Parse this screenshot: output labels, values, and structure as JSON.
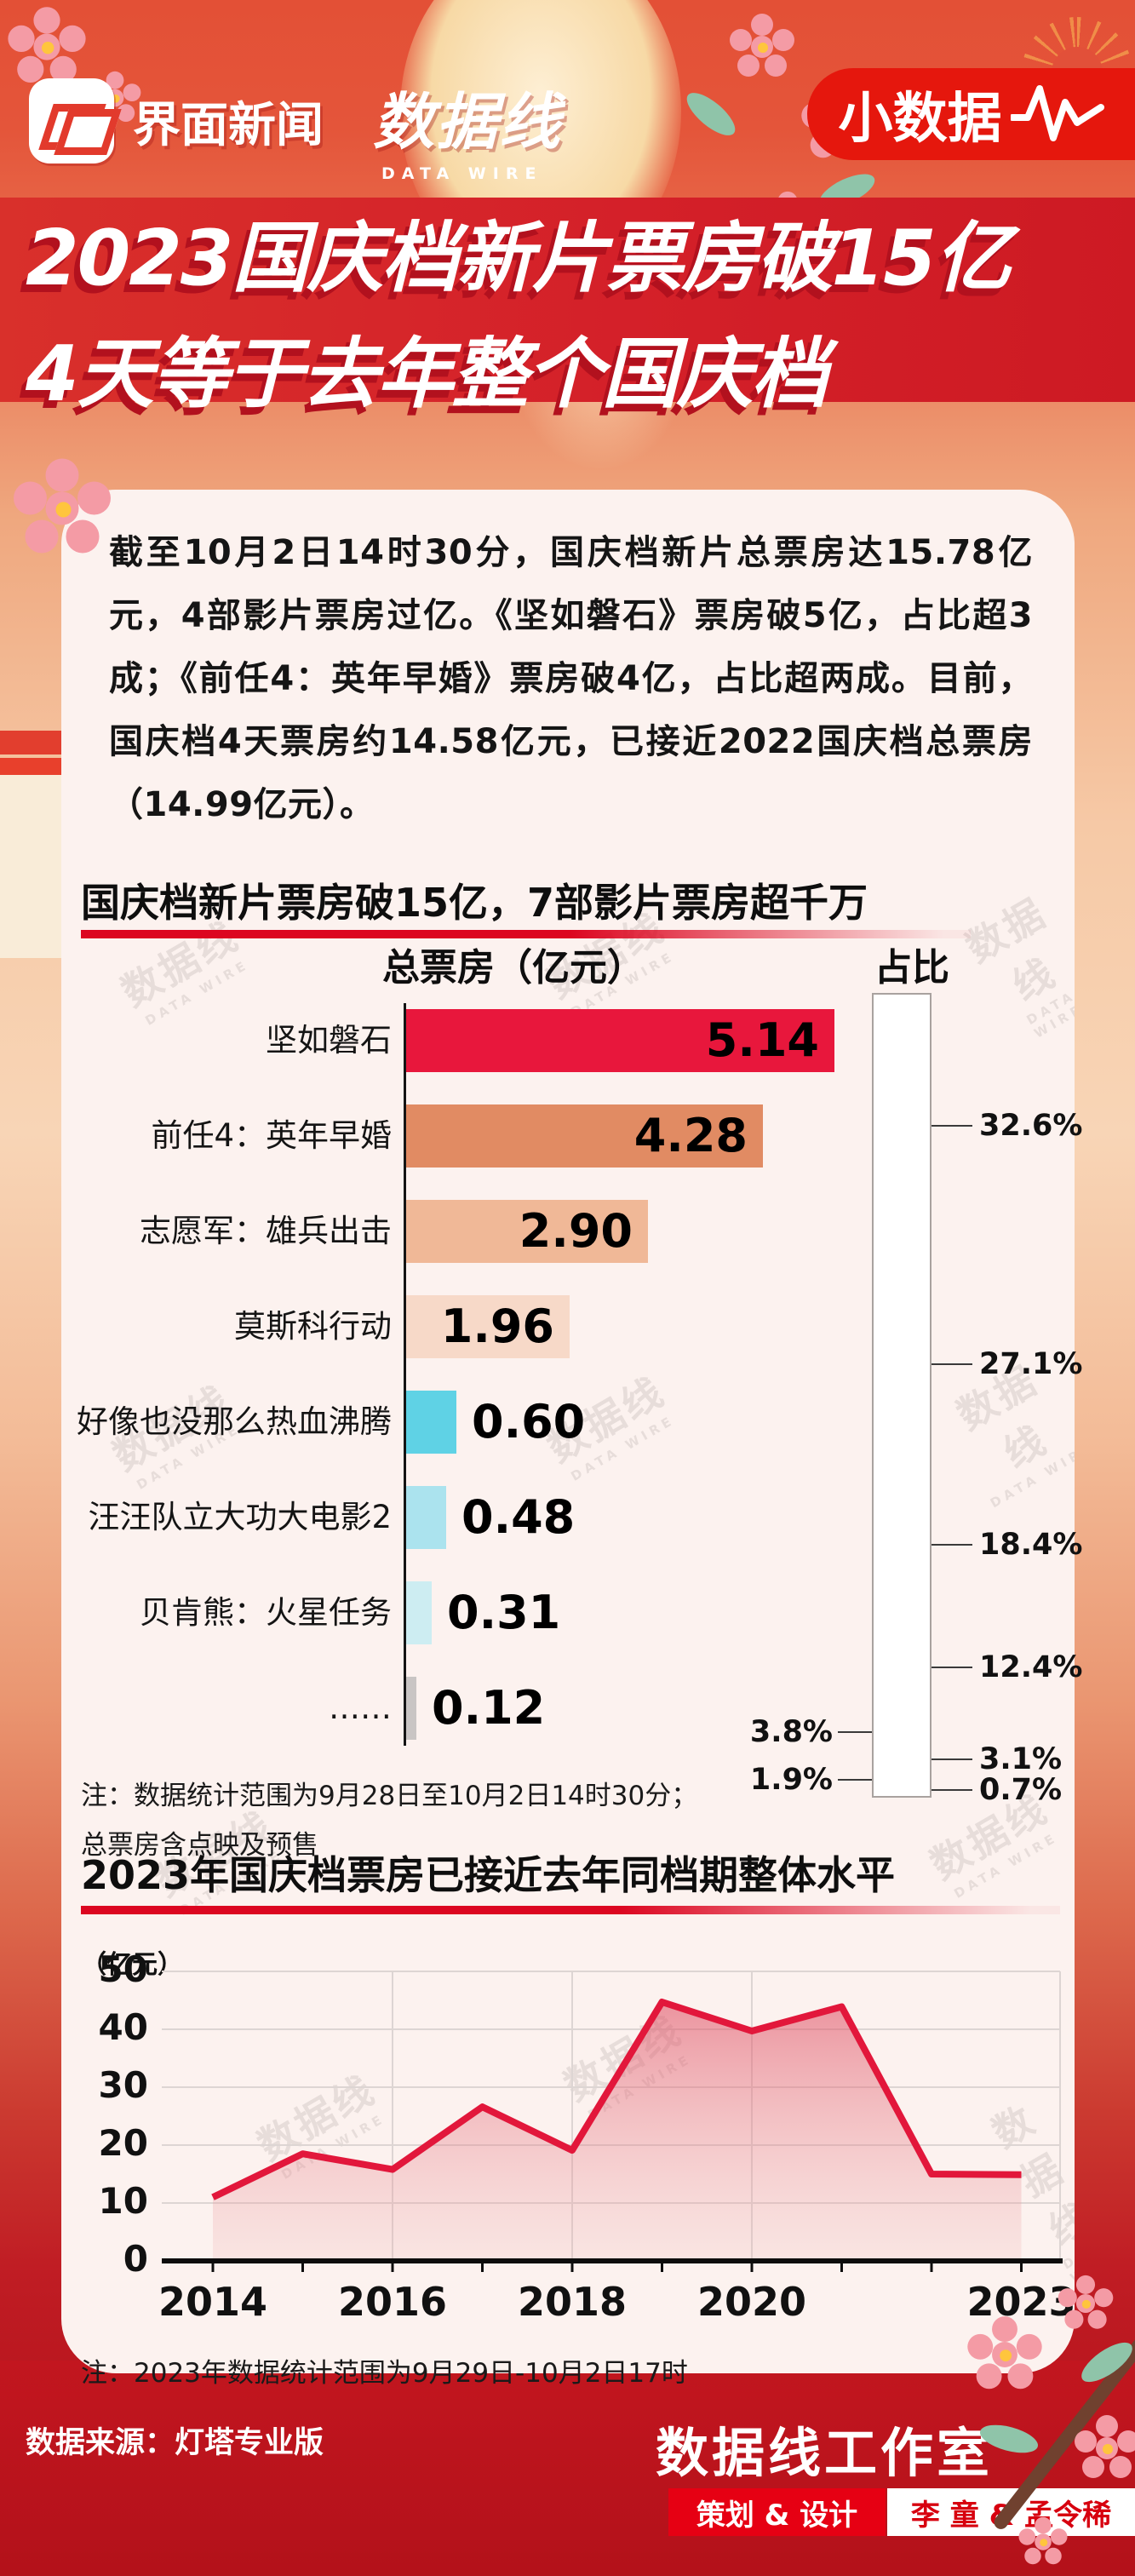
{
  "header": {
    "jiemian_logo_text": "界面新闻",
    "datawire_logo_text": "数据线",
    "datawire_logo_sub": "DATA WIRE",
    "badge_label": "小数据"
  },
  "title": {
    "line1": "2023国庆档新片票房破15亿",
    "line2": "4天等于去年整个国庆档"
  },
  "intro_paragraph": "截至10月2日14时30分，国庆档新片总票房达15.78亿元，4部影片票房过亿。《坚如磐石》票房破5亿，占比超3成；《前任4：英年早婚》票房破4亿，占比超两成。目前，国庆档4天票房约14.58亿元，已接近2022国庆档总票房（14.99亿元）。",
  "watermark": {
    "line1": "数据线",
    "line2": "DATA WIRE"
  },
  "chart_data": [
    {
      "type": "bar",
      "title": "国庆档新片票房破15亿，7部影片票房超千万",
      "value_axis_label": "总票房（亿元）",
      "share_axis_label": "占比",
      "categories": [
        "坚如磐石",
        "前任4：英年早婚",
        "志愿军：雄兵出击",
        "莫斯科行动",
        "好像也没那么热血沸腾",
        "汪汪队立大功大电影2",
        "贝肯熊：火星任务",
        "……"
      ],
      "values": [
        5.14,
        4.28,
        2.9,
        1.96,
        0.6,
        0.48,
        0.31,
        0.12
      ],
      "value_labels": [
        "5.14",
        "4.28",
        "2.90",
        "1.96",
        "0.60",
        "0.48",
        "0.31",
        "0.12"
      ],
      "share_values": [
        32.6,
        27.1,
        18.4,
        12.4,
        3.8,
        3.1,
        1.9,
        0.7
      ],
      "share_labels": [
        "32.6%",
        "27.1%",
        "18.4%",
        "12.4%",
        "3.8%",
        "3.1%",
        "1.9%",
        "0.7%"
      ],
      "colors": [
        "#e8173c",
        "#e18b63",
        "#f0b897",
        "#f7d9c8",
        "#5fd2e5",
        "#abe3ee",
        "#cdedf2",
        "#c9c5c4"
      ],
      "xlim": [
        0,
        5.14
      ],
      "note_line1": "注：数据统计范围为9月28日至10月2日14时30分；",
      "note_line2": "总票房含点映及预售"
    },
    {
      "type": "area",
      "title": "2023年国庆档票房已接近去年同档期整体水平",
      "unit_label": "（亿元）",
      "x": [
        2014,
        2015,
        2016,
        2017,
        2018,
        2019,
        2020,
        2021,
        2022,
        2023
      ],
      "values": [
        11.0,
        18.5,
        15.8,
        26.6,
        19.1,
        44.7,
        39.7,
        43.9,
        15.0,
        14.9
      ],
      "x_tick_years": [
        2014,
        2016,
        2018,
        2020,
        2023
      ],
      "x_tick_labels": [
        "2014",
        "2016",
        "2018",
        "2020",
        "2023"
      ],
      "y_ticks": [
        0,
        10,
        20,
        30,
        40,
        50
      ],
      "y_tick_labels": [
        "0",
        "10",
        "20",
        "30",
        "40",
        "50"
      ],
      "ylim": [
        0,
        50
      ],
      "grid": true,
      "line_color": "#e2173b",
      "note": "注：2023年数据统计范围为9月29日-10月2日17时"
    }
  ],
  "footer": {
    "source": "数据来源：灯塔专业版",
    "studio": "数据线工作室",
    "credit_role": "策划 & 设计",
    "credit_names": "李  童 & 孟令稀"
  }
}
